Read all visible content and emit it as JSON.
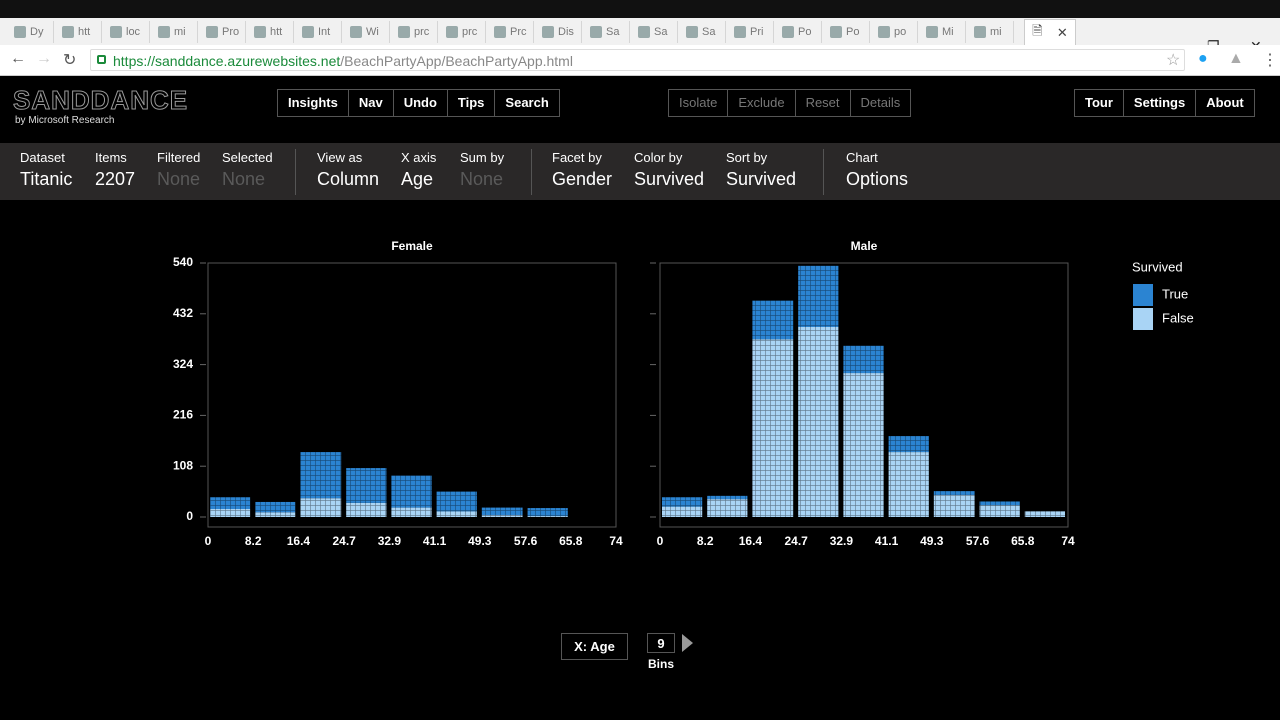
{
  "browser": {
    "tabs": [
      "Dy",
      "htt",
      "loc",
      "mi",
      "Pro",
      "htt",
      "Int",
      "Wi",
      "prc",
      "prc",
      "Prc",
      "Dis",
      "Sa",
      "Sa",
      "Sa",
      "Pri",
      "Po",
      "Po",
      "po",
      "Mi",
      "mi"
    ],
    "url_host": "https://sanddance.azurewebsites.net",
    "url_path": "/BeachPartyApp/BeachPartyApp.html"
  },
  "app": {
    "logo": "SANDDANCE",
    "byline": "by Microsoft Research",
    "menu": [
      "Insights",
      "Nav",
      "Undo",
      "Tips",
      "Search"
    ],
    "selection": [
      "Isolate",
      "Exclude",
      "Reset",
      "Details"
    ],
    "right_menu": [
      "Tour",
      "Settings",
      "About"
    ]
  },
  "toolbar": [
    [
      {
        "label": "Dataset",
        "value": "Titanic"
      },
      {
        "label": "Items",
        "value": "2207"
      },
      {
        "label": "Filtered",
        "value": "None",
        "disabled": true
      },
      {
        "label": "Selected",
        "value": "None",
        "disabled": true
      }
    ],
    [
      {
        "label": "View as",
        "value": "Column"
      },
      {
        "label": "X axis",
        "value": "Age"
      },
      {
        "label": "Sum by",
        "value": "None",
        "disabled": true
      }
    ],
    [
      {
        "label": "Facet by",
        "value": "Gender"
      },
      {
        "label": "Color by",
        "value": "Survived"
      },
      {
        "label": "Sort by",
        "value": "Survived"
      }
    ],
    [
      {
        "label": "Chart",
        "value": "Options"
      }
    ]
  ],
  "chart_data": [
    {
      "type": "histogram",
      "title": "Female",
      "legend_title": "Survived",
      "bins": [
        0,
        8.2,
        16.4,
        24.7,
        32.9,
        41.1,
        49.3,
        57.6,
        65.8,
        74
      ],
      "series": [
        {
          "name": "True",
          "color": "#2b84d2",
          "values": [
            25,
            22,
            98,
            74,
            68,
            42,
            16,
            17,
            0
          ]
        },
        {
          "name": "False",
          "color": "#a9d4f5",
          "values": [
            17,
            10,
            40,
            30,
            20,
            12,
            4,
            2,
            0
          ]
        }
      ],
      "xlim": [
        0,
        74
      ],
      "xticks": [
        0,
        8.2,
        16.4,
        24.7,
        32.9,
        41.1,
        49.3,
        57.6,
        65.8,
        74
      ],
      "ylim": [
        0,
        540
      ],
      "yticks": [
        0,
        108,
        216,
        324,
        432,
        540
      ]
    },
    {
      "type": "histogram",
      "title": "Male",
      "bins": [
        0,
        8.2,
        16.4,
        24.7,
        32.9,
        41.1,
        49.3,
        57.6,
        65.8,
        74
      ],
      "series": [
        {
          "name": "True",
          "color": "#2b84d2",
          "values": [
            20,
            7,
            82,
            130,
            58,
            34,
            8,
            8,
            0
          ]
        },
        {
          "name": "False",
          "color": "#a9d4f5",
          "values": [
            22,
            38,
            378,
            404,
            306,
            138,
            47,
            25,
            12
          ]
        }
      ],
      "xlim": [
        0,
        74
      ],
      "xticks": [
        0,
        8.2,
        16.4,
        24.7,
        32.9,
        41.1,
        49.3,
        57.6,
        65.8,
        74
      ],
      "ylim": [
        0,
        540
      ]
    }
  ],
  "footer": {
    "axis_button": "X: Age",
    "bins": "9",
    "bins_label": "Bins"
  }
}
